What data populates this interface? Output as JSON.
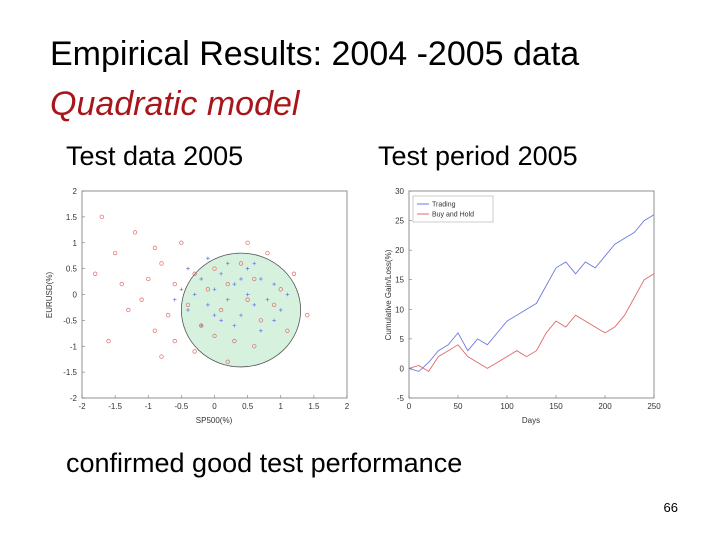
{
  "slide": {
    "title": "Empirical Results: 2004 -2005 data",
    "subtitle": "Quadratic model",
    "caption_left": "Test data 2005",
    "caption_right": "Test period 2005",
    "conclusion": "confirmed good test performance",
    "page_number": "66"
  },
  "colors": {
    "title_red": "#a8161c",
    "ellipse_fill": "#d6f2df",
    "ellipse_stroke": "#555555",
    "red_series": "#e06a6a",
    "blue_series": "#6a7ae0"
  },
  "chart_data": [
    {
      "type": "scatter",
      "xlabel": "SP500(%)",
      "ylabel": "EURUSD(%)",
      "xlim": [
        -2,
        2
      ],
      "ylim": [
        -2,
        2
      ],
      "xticks": [
        "-2",
        "-1.5",
        "-1",
        "-0.5",
        "0",
        "0.5",
        "1",
        "1.5",
        "2"
      ],
      "yticks": [
        "-2",
        "-1.5",
        "-1",
        "-0.5",
        "0",
        "0.5",
        "1",
        "1.5",
        "2"
      ],
      "ellipse": {
        "cx": 0.4,
        "cy": -0.3,
        "rx": 0.9,
        "ry": 1.1
      },
      "series": [
        {
          "marker": "circle",
          "color": "#e06a6a",
          "points": [
            [
              -1.7,
              1.5
            ],
            [
              -1.5,
              0.8
            ],
            [
              -1.3,
              -0.3
            ],
            [
              -1.2,
              1.2
            ],
            [
              -1.0,
              0.3
            ],
            [
              -0.9,
              -0.7
            ],
            [
              -1.1,
              -0.1
            ],
            [
              -0.8,
              0.6
            ],
            [
              -0.7,
              -0.4
            ],
            [
              -0.6,
              0.2
            ],
            [
              -0.5,
              1.0
            ],
            [
              -0.4,
              -0.2
            ],
            [
              -0.3,
              0.4
            ],
            [
              -0.2,
              -0.6
            ],
            [
              -0.1,
              0.1
            ],
            [
              0.0,
              0.5
            ],
            [
              0.1,
              -0.3
            ],
            [
              0.2,
              0.2
            ],
            [
              0.3,
              -0.9
            ],
            [
              0.4,
              0.6
            ],
            [
              0.5,
              -0.1
            ],
            [
              0.6,
              0.3
            ],
            [
              0.7,
              -0.5
            ],
            [
              0.8,
              0.8
            ],
            [
              0.9,
              -0.2
            ],
            [
              1.0,
              0.1
            ],
            [
              1.1,
              -0.7
            ],
            [
              1.2,
              0.4
            ],
            [
              1.4,
              -0.4
            ],
            [
              -1.6,
              -0.9
            ],
            [
              -1.4,
              0.2
            ],
            [
              -0.9,
              0.9
            ],
            [
              -0.3,
              -1.1
            ],
            [
              0.2,
              -1.3
            ],
            [
              0.5,
              1.0
            ],
            [
              -0.6,
              -0.9
            ],
            [
              0.0,
              -0.8
            ],
            [
              -1.8,
              0.4
            ],
            [
              -0.8,
              -1.2
            ],
            [
              0.6,
              -1.0
            ]
          ]
        },
        {
          "marker": "plus",
          "color": "#6a7ae0",
          "points": [
            [
              -0.5,
              0.1
            ],
            [
              -0.4,
              -0.3
            ],
            [
              -0.3,
              0.0
            ],
            [
              -0.2,
              0.3
            ],
            [
              -0.1,
              -0.2
            ],
            [
              0.0,
              0.1
            ],
            [
              0.1,
              0.4
            ],
            [
              0.2,
              -0.1
            ],
            [
              0.3,
              0.2
            ],
            [
              0.4,
              -0.4
            ],
            [
              0.5,
              0.0
            ],
            [
              0.6,
              -0.2
            ],
            [
              0.7,
              0.3
            ],
            [
              0.8,
              -0.1
            ],
            [
              0.9,
              0.2
            ],
            [
              1.0,
              -0.3
            ],
            [
              0.3,
              -0.6
            ],
            [
              0.1,
              -0.5
            ],
            [
              -0.2,
              -0.6
            ],
            [
              0.5,
              0.5
            ],
            [
              0.7,
              -0.7
            ],
            [
              -0.4,
              0.5
            ],
            [
              0.0,
              -0.4
            ],
            [
              0.4,
              0.3
            ],
            [
              1.1,
              0.0
            ],
            [
              0.6,
              0.6
            ],
            [
              -0.6,
              -0.1
            ],
            [
              0.2,
              0.6
            ],
            [
              0.9,
              -0.5
            ],
            [
              -0.1,
              0.7
            ]
          ]
        }
      ]
    },
    {
      "type": "line",
      "xlabel": "Days",
      "ylabel": "Cumulative Gain/Loss(%)",
      "xlim": [
        0,
        250
      ],
      "ylim": [
        -5,
        30
      ],
      "xticks": [
        "0",
        "50",
        "100",
        "150",
        "200",
        "250"
      ],
      "yticks": [
        "-5",
        "0",
        "5",
        "10",
        "15",
        "20",
        "25",
        "30"
      ],
      "legend": "top-left",
      "x": [
        0,
        10,
        20,
        30,
        40,
        50,
        60,
        70,
        80,
        90,
        100,
        110,
        120,
        130,
        140,
        150,
        160,
        170,
        180,
        190,
        200,
        210,
        220,
        230,
        240,
        250
      ],
      "series": [
        {
          "name": "Trading",
          "color": "#6a7ae0",
          "values": [
            0,
            -0.5,
            1,
            3,
            4,
            6,
            3,
            5,
            4,
            6,
            8,
            9,
            10,
            11,
            14,
            17,
            18,
            16,
            18,
            17,
            19,
            21,
            22,
            23,
            25,
            26
          ]
        },
        {
          "name": "Buy and Hold",
          "color": "#e06a6a",
          "values": [
            0,
            0.5,
            -0.5,
            2,
            3,
            4,
            2,
            1,
            0,
            1,
            2,
            3,
            2,
            3,
            6,
            8,
            7,
            9,
            8,
            7,
            6,
            7,
            9,
            12,
            15,
            16
          ]
        }
      ]
    }
  ]
}
